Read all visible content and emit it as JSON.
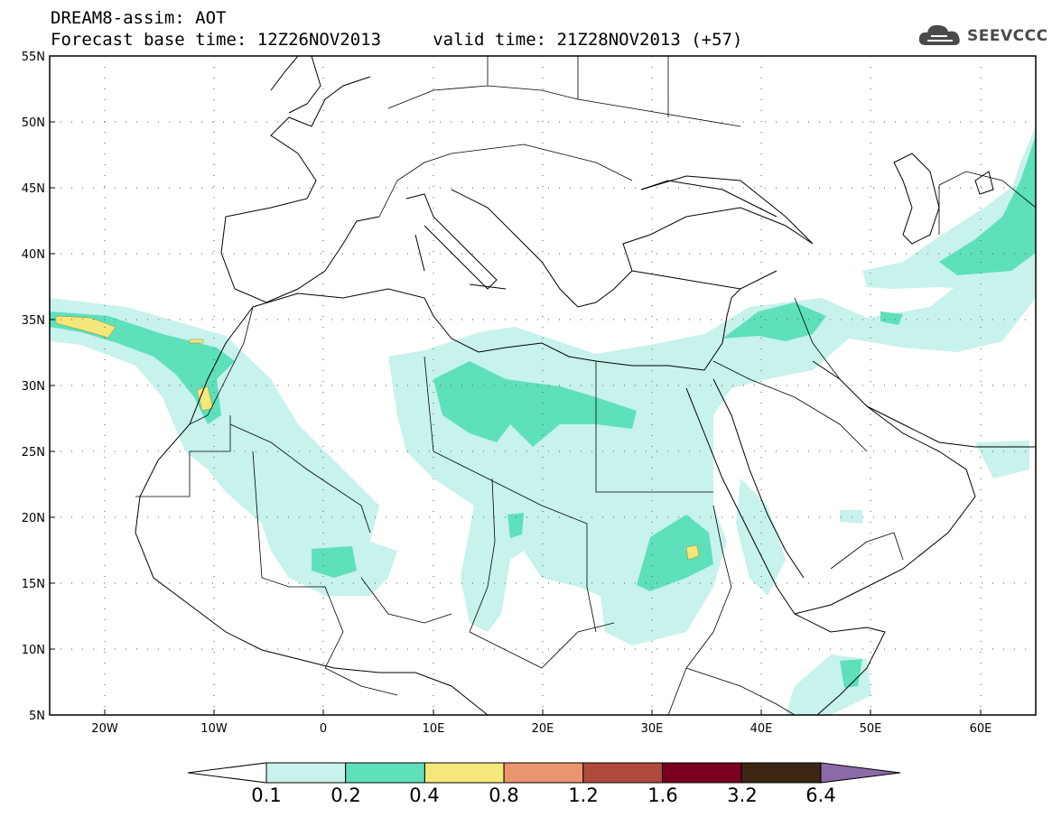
{
  "title": {
    "line1": "DREAM8-assim: AOT",
    "line2": "Forecast base time: 12Z26NOV2013     valid time: 21Z28NOV2013 (+57)"
  },
  "logo": {
    "text": "SEEVCCC",
    "icon": "cloud-icon",
    "color": "#4a4a4a"
  },
  "map": {
    "lon_range": [
      -25,
      65
    ],
    "lat_range": [
      5,
      55
    ],
    "lat_labels": [
      "55N",
      "50N",
      "45N",
      "40N",
      "35N",
      "30N",
      "25N",
      "20N",
      "15N",
      "10N",
      "5N"
    ],
    "lon_labels": [
      "20W",
      "10W",
      "0",
      "10E",
      "20E",
      "30E",
      "40E",
      "50E",
      "60E"
    ],
    "grid": "dotted"
  },
  "colorbar": {
    "levels": [
      "0.1",
      "0.2",
      "0.4",
      "0.8",
      "1.2",
      "1.6",
      "3.2",
      "6.4"
    ],
    "colors": [
      "#c8f2ec",
      "#5ee0bb",
      "#f5e77a",
      "#ea9470",
      "#b04a3c",
      "#7a0020",
      "#3d2614",
      "#8c6aa8"
    ]
  }
}
